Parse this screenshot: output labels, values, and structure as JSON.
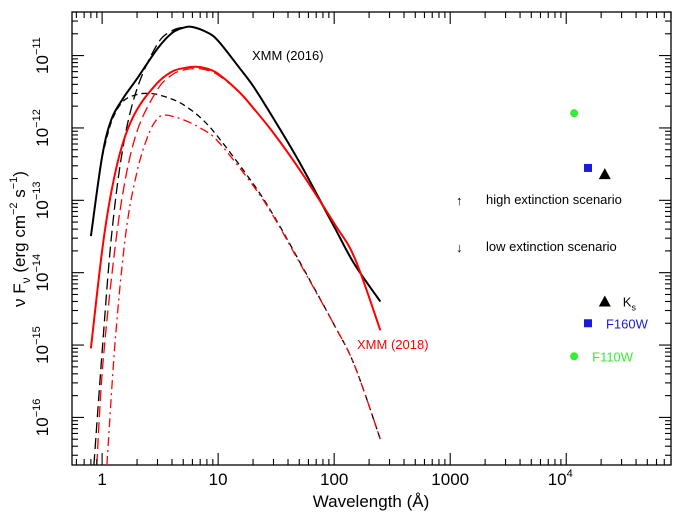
{
  "chart_data": {
    "type": "line",
    "xlabel": "Wavelength (Å)",
    "ylabel": "ν F",
    "ylabel_sub": "ν",
    "ylabel_unit_prefix": "(erg cm",
    "ylabel_unit_exp1": "−2",
    "ylabel_unit_mid": " s",
    "ylabel_unit_exp2": "−1",
    "ylabel_unit_suffix": ")",
    "x_scale": "log",
    "y_scale": "log",
    "xlim": [
      0.55,
      80000
    ],
    "ylim": [
      2.2e-17,
      4e-11
    ],
    "x_ticks": [
      {
        "value": 1,
        "label": "1"
      },
      {
        "value": 10,
        "label": "10"
      },
      {
        "value": 100,
        "label": "100"
      },
      {
        "value": 1000,
        "label": "1000"
      }
    ],
    "x_tick_pow": {
      "value": 10000,
      "base": "10",
      "exp": "4"
    },
    "y_ticks": [
      {
        "value": 1e-11,
        "base": "10",
        "exp": "−11"
      },
      {
        "value": 1e-12,
        "base": "10",
        "exp": "−12"
      },
      {
        "value": 1e-13,
        "base": "10",
        "exp": "−13"
      },
      {
        "value": 1e-14,
        "base": "10",
        "exp": "−14"
      },
      {
        "value": 1e-15,
        "base": "10",
        "exp": "−15"
      },
      {
        "value": 1e-16,
        "base": "10",
        "exp": "−16"
      }
    ],
    "series": [
      {
        "name": "XMM (2016)",
        "color": "#000000",
        "style": "solid",
        "x": [
          0.8,
          1.0,
          1.2,
          1.5,
          2.0,
          3.0,
          4.0,
          5.0,
          6.0,
          8.0,
          10,
          15,
          20,
          30,
          50,
          100,
          150,
          250
        ],
        "y": [
          3.2e-14,
          4e-13,
          1.3e-12,
          2.5e-12,
          4.8e-12,
          1.25e-11,
          2.05e-11,
          2.42e-11,
          2.48e-11,
          2.1e-11,
          1.6e-11,
          7e-12,
          3.8e-12,
          1.35e-12,
          3.4e-13,
          4.3e-14,
          1.3e-14,
          4e-15
        ]
      },
      {
        "name": "",
        "color": "#000000",
        "style": "longdash",
        "x": [
          0.85,
          1.0,
          1.2,
          1.5,
          2.0,
          3.0,
          4.0,
          5.0,
          6.0,
          8.0,
          10,
          15,
          20,
          30,
          50,
          100,
          150,
          250
        ],
        "y": [
          2.2e-17,
          8e-16,
          3e-14,
          5e-13,
          3.5e-12,
          1.45e-11,
          2.2e-11,
          2.45e-11,
          2.48e-11,
          2.1e-11,
          1.6e-11,
          7e-12,
          3.8e-12,
          1.35e-12,
          3.4e-13,
          4.3e-14,
          1.3e-14,
          4e-15
        ]
      },
      {
        "name": "",
        "color": "#000000",
        "style": "dash",
        "x": [
          1.0,
          1.2,
          1.5,
          2.0,
          2.5,
          3.0,
          4.0,
          5.0,
          7.0,
          10,
          20,
          30,
          50,
          100,
          150,
          250
        ],
        "y": [
          4e-13,
          1.2e-12,
          2.3e-12,
          2.9e-12,
          3e-12,
          2.9e-12,
          2.5e-12,
          2.1e-12,
          1.4e-12,
          7.5e-13,
          1.7e-13,
          6.2e-14,
          1.45e-14,
          1.9e-15,
          5.2e-16,
          5e-17
        ]
      },
      {
        "name": "XMM (2018)",
        "color": "#ff0000",
        "style": "solid",
        "x": [
          0.8,
          1.0,
          1.2,
          1.5,
          2.0,
          3.0,
          4.0,
          5.0,
          6.5,
          8.0,
          10,
          15,
          20,
          30,
          50,
          100,
          150,
          250
        ],
        "y": [
          9e-16,
          2e-14,
          1.3e-13,
          6e-13,
          1.8e-12,
          4.2e-12,
          6e-12,
          6.7e-12,
          7e-12,
          6.6e-12,
          5.6e-12,
          3.2e-12,
          1.9e-12,
          8.5e-13,
          2.7e-13,
          4.8e-14,
          1.6e-14,
          1.6e-15
        ]
      },
      {
        "name": "",
        "color": "#ff0000",
        "style": "longdash",
        "x": [
          0.9,
          1.0,
          1.2,
          1.5,
          2.0,
          3.0,
          4.0,
          5.0,
          6.5,
          8.0,
          10,
          15,
          20,
          30,
          50,
          100,
          150,
          250
        ],
        "y": [
          2.2e-17,
          4e-16,
          8e-15,
          1.2e-13,
          9e-13,
          3.4e-12,
          5.4e-12,
          6.3e-12,
          6.6e-12,
          6.3e-12,
          5.4e-12,
          3.2e-12,
          1.9e-12,
          8.5e-13,
          2.7e-13,
          4.8e-14,
          1.6e-14,
          1.6e-15
        ]
      },
      {
        "name": "",
        "color": "#ff0000",
        "style": "dashdot",
        "x": [
          1.1,
          1.3,
          1.6,
          2.0,
          2.5,
          3.0,
          3.5,
          4.0,
          5.0,
          7.0,
          10,
          20,
          30,
          50,
          100,
          150,
          250
        ],
        "y": [
          2.2e-17,
          1.2e-15,
          3.5e-14,
          2.5e-13,
          8e-13,
          1.35e-12,
          1.5e-12,
          1.45e-12,
          1.3e-12,
          1e-12,
          6.5e-13,
          1.6e-13,
          6e-14,
          1.4e-14,
          1.9e-15,
          5.2e-16,
          5e-17
        ]
      }
    ],
    "points": [
      {
        "label": "",
        "x": 11700,
        "y": 1.6e-12,
        "marker": "circle",
        "color": "#33ee33"
      },
      {
        "label": "",
        "x": 15400,
        "y": 2.8e-13,
        "marker": "square",
        "color": "#1a1ad9"
      },
      {
        "label": "",
        "x": 21500,
        "y": 2.3e-13,
        "marker": "triangle",
        "color": "#000000"
      },
      {
        "label": "K",
        "label_sub": "s",
        "x": 21500,
        "y": 4e-15,
        "marker": "triangle",
        "color": "#000000"
      },
      {
        "label": "F160W",
        "x": 15400,
        "y": 2e-15,
        "marker": "square",
        "color": "#1a1ad9"
      },
      {
        "label": "F110W",
        "x": 11700,
        "y": 7e-16,
        "marker": "circle",
        "color": "#33ee33"
      }
    ],
    "annotations": [
      {
        "text": "XMM (2016)",
        "color": "#000000"
      },
      {
        "text": "XMM (2018)",
        "color": "#ff0000"
      },
      {
        "arrow": "↑",
        "text": "high extinction scenario",
        "color": "#000000"
      },
      {
        "arrow": "↓",
        "text": "low extinction scenario",
        "color": "#000000"
      }
    ],
    "grid": false,
    "legend": "none"
  }
}
